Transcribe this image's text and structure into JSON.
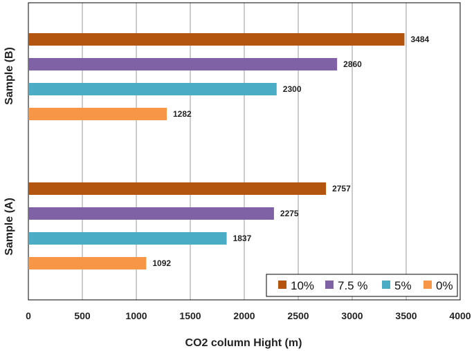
{
  "chart_data": {
    "type": "bar",
    "orientation": "horizontal",
    "title": "",
    "xlabel": "CO2 column Hight (m)",
    "ylabel": "",
    "xlim": [
      0,
      4000
    ],
    "x_ticks": [
      0,
      500,
      1000,
      1500,
      2000,
      2500,
      3000,
      3500,
      4000
    ],
    "x_tick_labels": [
      "0",
      "500",
      "1000",
      "1500",
      "2000",
      "2500",
      "3000",
      "3500",
      "4000"
    ],
    "grid": "vertical",
    "legend_position": "bottom-right",
    "categories": [
      "Sample (B)",
      "Sample (A)"
    ],
    "series": [
      {
        "name": "10%",
        "color": "#b3540f",
        "values": [
          3484,
          2757
        ]
      },
      {
        "name": "7.5 %",
        "color": "#7f62a6",
        "values": [
          2860,
          2275
        ]
      },
      {
        "name": "5%",
        "color": "#4bacc6",
        "values": [
          2300,
          1837
        ]
      },
      {
        "name": "0%",
        "color": "#f79646",
        "values": [
          1282,
          1092
        ]
      }
    ]
  }
}
